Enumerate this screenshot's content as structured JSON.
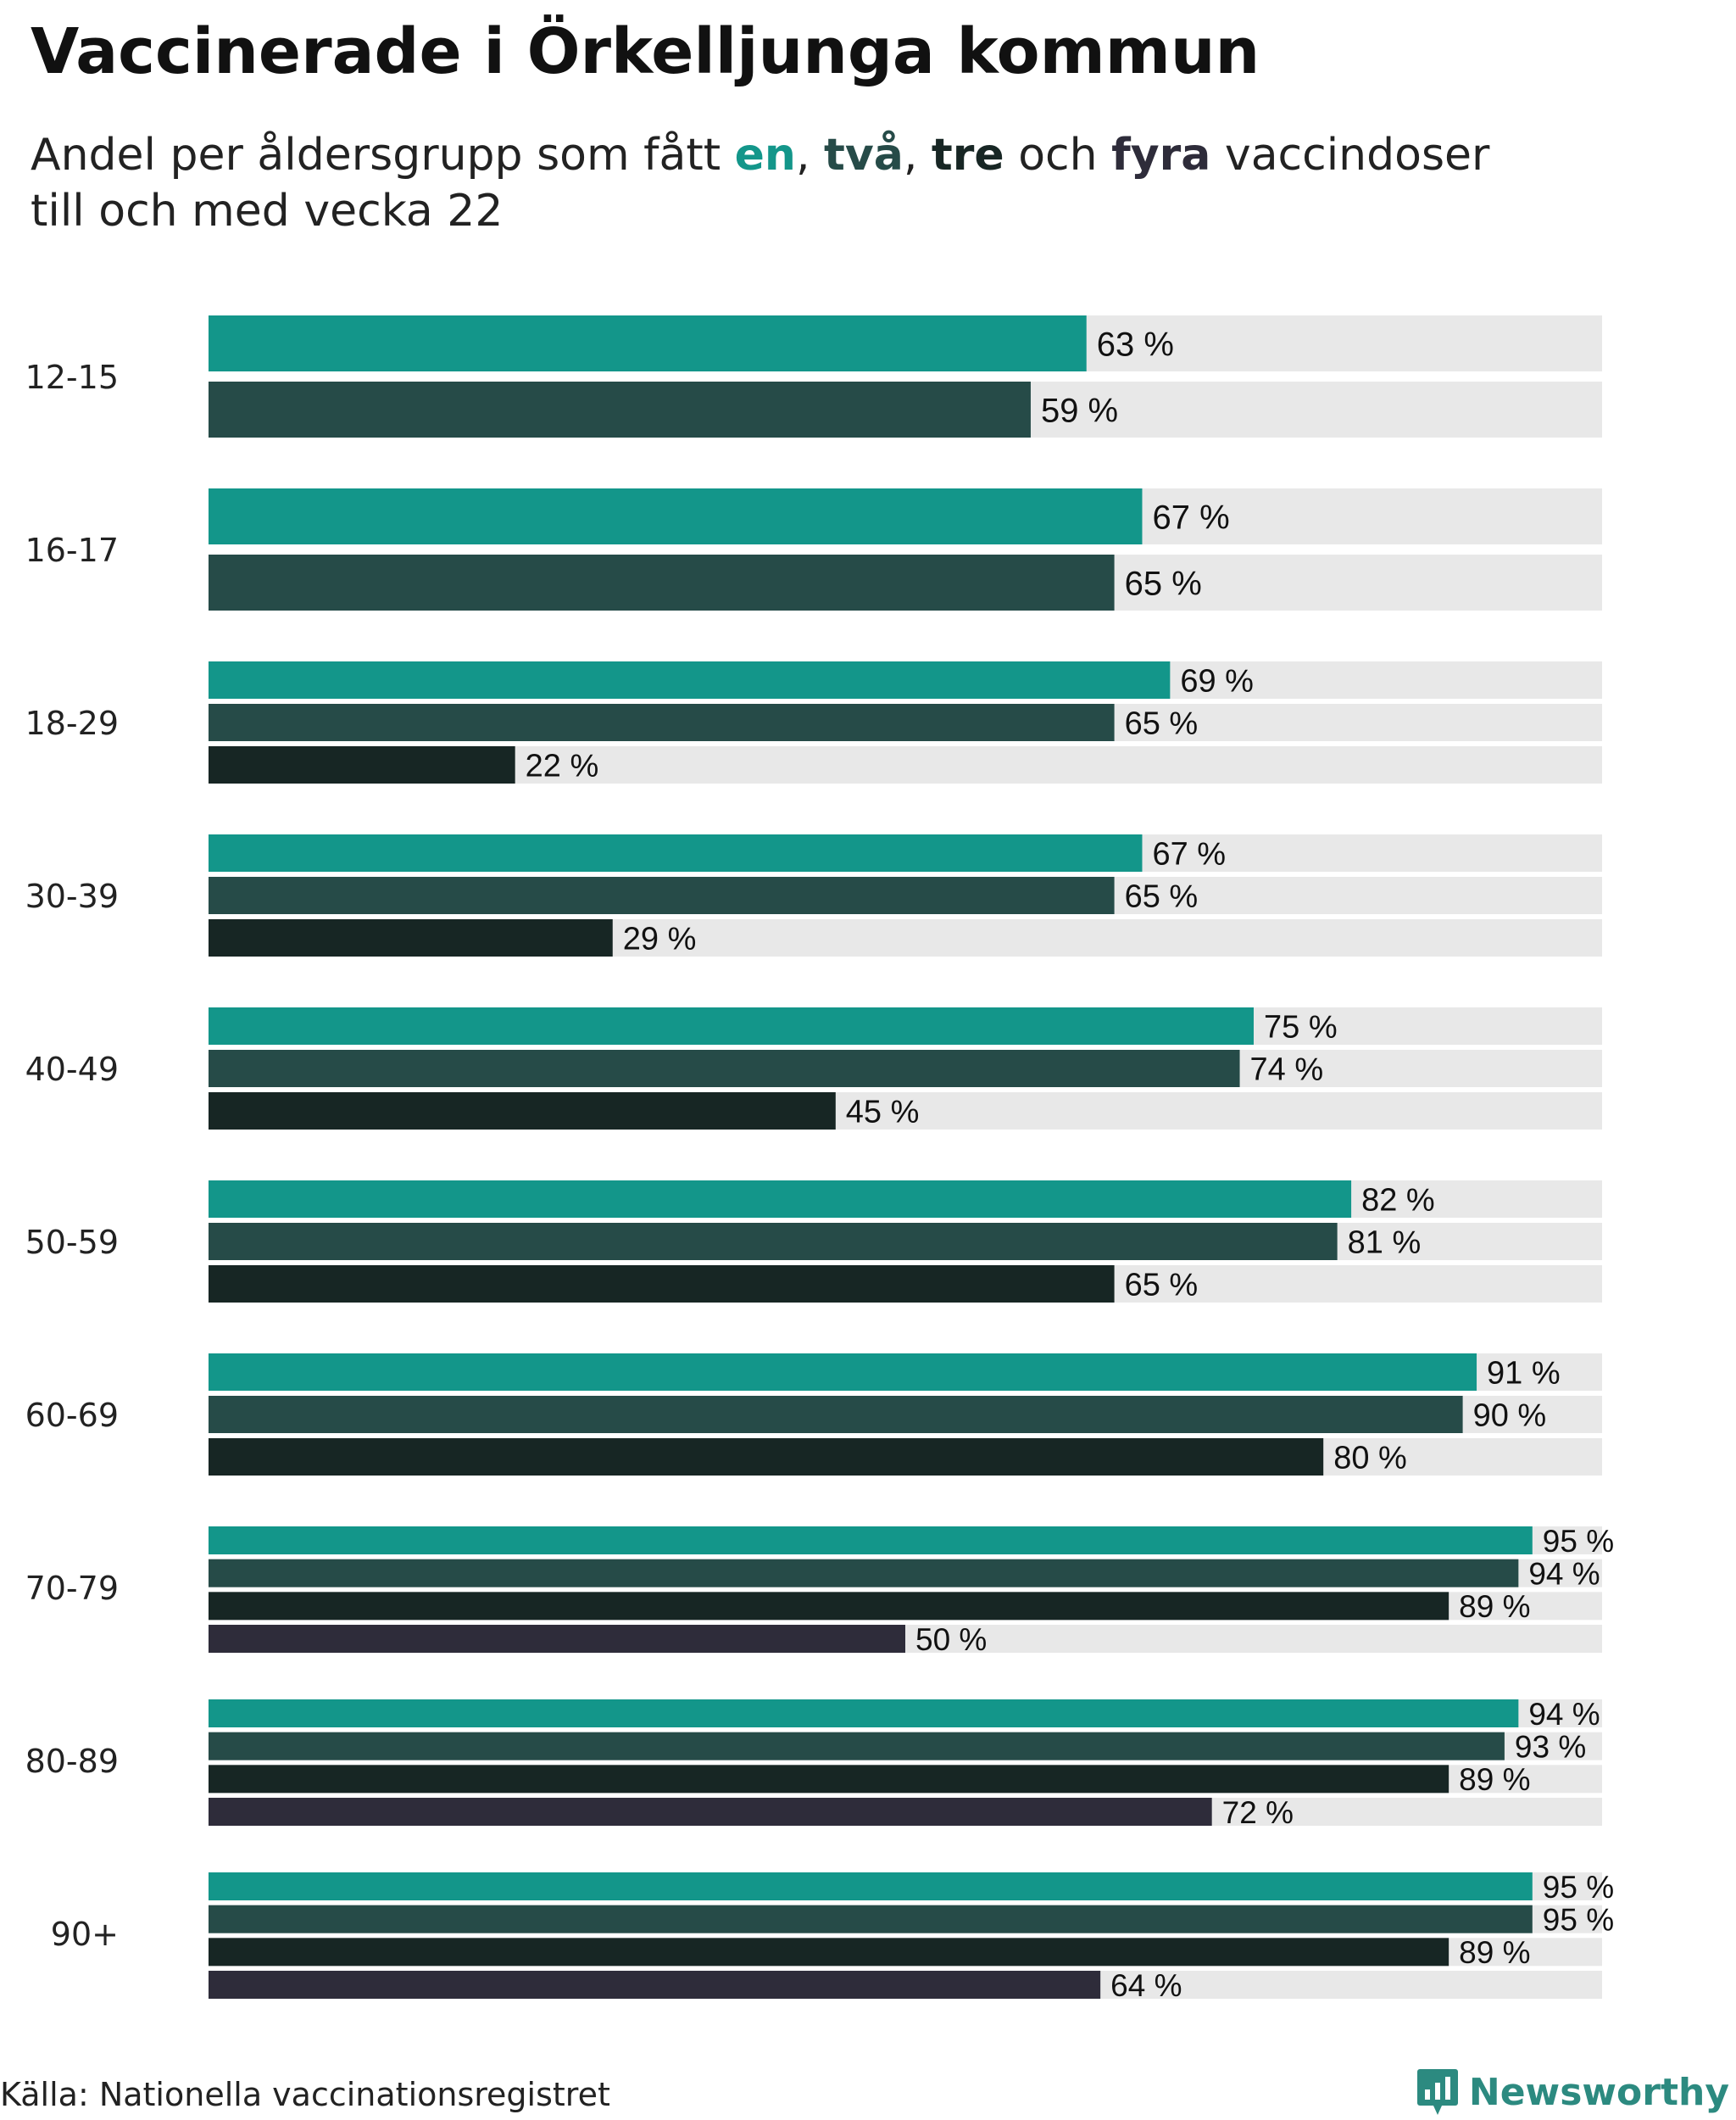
{
  "header": {
    "title": "Vaccinerade i Örkelljunga kommun",
    "subtitle_pre": "Andel per åldersgrupp som fått ",
    "subtitle_k1": "en",
    "subtitle_sep1": ", ",
    "subtitle_k2": "två",
    "subtitle_sep2": ", ",
    "subtitle_k3": "tre",
    "subtitle_mid": " och ",
    "subtitle_k4": "fyra",
    "subtitle_post": " vaccindoser",
    "subtitle_line2": "till och med vecka 22"
  },
  "footer": {
    "source": "Källa: Nationella vaccinationsregistret",
    "brand": "Newsworthy"
  },
  "colors": {
    "dose1": "#13968a",
    "dose2": "#264b48",
    "dose3": "#172624",
    "dose4": "#2e2c3a",
    "track": "#e8e8e8",
    "brand": "#2c8a80"
  },
  "chart_data": {
    "type": "bar",
    "orientation": "horizontal",
    "xlim": [
      0,
      100
    ],
    "unit": "%",
    "series": [
      {
        "name": "en"
      },
      {
        "name": "två"
      },
      {
        "name": "tre"
      },
      {
        "name": "fyra"
      }
    ],
    "groups": [
      {
        "label": "12-15",
        "values": [
          63,
          59
        ]
      },
      {
        "label": "16-17",
        "values": [
          67,
          65
        ]
      },
      {
        "label": "18-29",
        "values": [
          69,
          65,
          22
        ]
      },
      {
        "label": "30-39",
        "values": [
          67,
          65,
          29
        ]
      },
      {
        "label": "40-49",
        "values": [
          75,
          74,
          45
        ]
      },
      {
        "label": "50-59",
        "values": [
          82,
          81,
          65
        ]
      },
      {
        "label": "60-69",
        "values": [
          91,
          90,
          80
        ]
      },
      {
        "label": "70-79",
        "values": [
          95,
          94,
          89,
          50
        ]
      },
      {
        "label": "80-89",
        "values": [
          94,
          93,
          89,
          72
        ]
      },
      {
        "label": "90+",
        "values": [
          95,
          95,
          89,
          64
        ]
      }
    ]
  }
}
